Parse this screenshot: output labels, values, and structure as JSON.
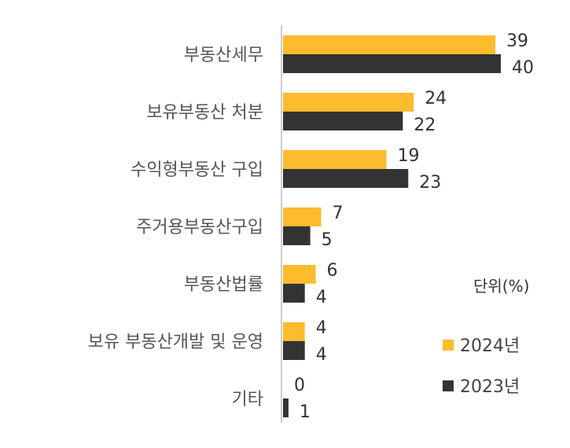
{
  "chart_data": {
    "type": "bar",
    "orientation": "horizontal",
    "categories": [
      "부동산세무",
      "보유부동산 처분",
      "수익형부동산 구입",
      "주거용부동산구입",
      "부동산법률",
      "보유 부동산개발 및 운영",
      "기타"
    ],
    "series": [
      {
        "name": "2024년",
        "values": [
          39,
          24,
          19,
          7,
          6,
          4,
          0
        ],
        "color": "#FDBB2D"
      },
      {
        "name": "2023년",
        "values": [
          40,
          22,
          23,
          5,
          4,
          4,
          1
        ],
        "color": "#333333"
      }
    ],
    "unit_label": "단위(%)",
    "xlim": [
      0,
      45
    ],
    "grid": false,
    "legend_position": "right"
  }
}
